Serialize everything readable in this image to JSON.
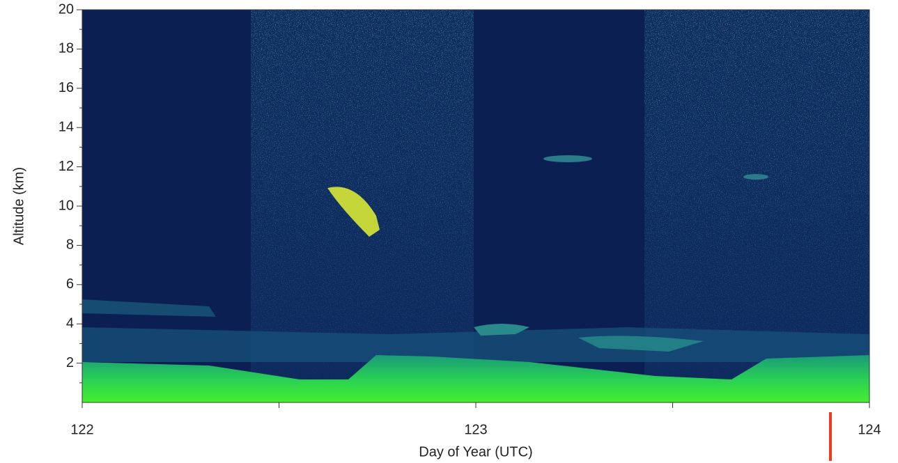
{
  "chart_data": {
    "type": "heatmap",
    "xlabel": "Day of Year  (UTC)",
    "ylabel": "Altitude (km)",
    "xlim": [
      122,
      124
    ],
    "xticks": [
      122,
      123,
      124
    ],
    "xminor_ticks": [
      122.5,
      123.5
    ],
    "ylim": [
      0,
      20
    ],
    "yticks": [
      2,
      4,
      6,
      8,
      10,
      12,
      14,
      16,
      18,
      20
    ],
    "yminor_ticks": [
      1,
      3,
      5,
      7,
      9,
      11,
      13,
      15,
      17,
      19
    ]
  }
}
